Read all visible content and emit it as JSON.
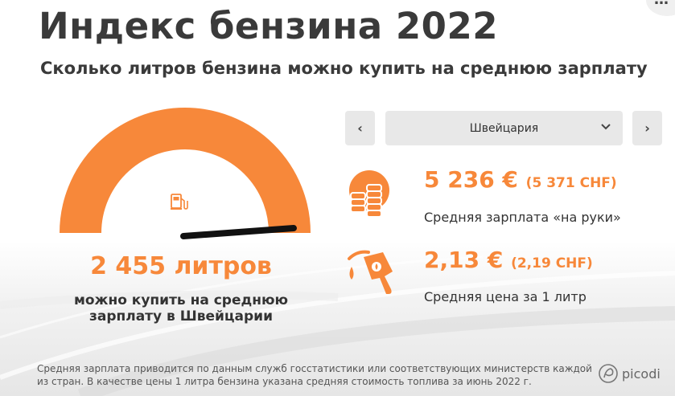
{
  "header": {
    "title": "Индекс бензина 2022",
    "subtitle": "Сколько литров бензина можно купить на среднюю зарплату",
    "more_label": "…"
  },
  "gauge": {
    "value_text": "2 455 литров",
    "caption": "можно купить на среднюю зарплату в Швейцарии",
    "fill_fraction": 1.0,
    "color": "#f7883a"
  },
  "country_selector": {
    "prev_label": "‹",
    "next_label": "›",
    "selected": "Швейцария"
  },
  "stats": {
    "salary": {
      "value": "5 236 €",
      "sub": "(5 371 CHF)",
      "label": "Средняя зарплата «на руки»"
    },
    "price": {
      "value": "2,13 €",
      "sub": "(2,19 CHF)",
      "label": "Средняя цена за 1 литр"
    }
  },
  "footnote": "Средняя зарплата приводится по данным служб госстатистики или соответствующих министерств каждой из стран. В качестве цены 1 литра бензина указана средняя стоимость топлива за июнь 2022 г.",
  "brand": {
    "name": "picodi"
  },
  "colors": {
    "accent": "#f7883a",
    "text": "#333333",
    "button_bg": "#e8e8e8"
  }
}
